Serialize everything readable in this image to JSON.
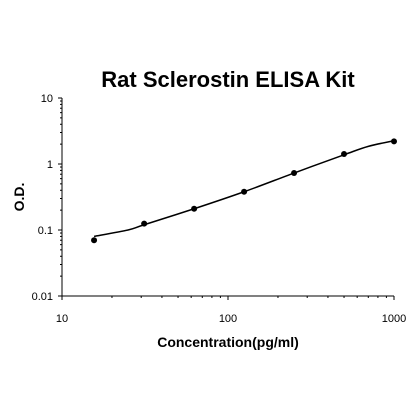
{
  "chart_data": {
    "type": "scatter",
    "title": "Rat Sclerostin ELISA Kit",
    "xlabel": "Concentration(pg/ml)",
    "ylabel": "O.D.",
    "x_scale": "log",
    "y_scale": "log",
    "xlim": [
      10,
      1000
    ],
    "ylim": [
      0.01,
      10
    ],
    "x_ticks": [
      10,
      100,
      1000
    ],
    "x_tick_labels": [
      "10",
      "100",
      "1000"
    ],
    "y_ticks": [
      0.01,
      0.1,
      1,
      10
    ],
    "y_tick_labels": [
      "0.01",
      "0.1",
      "1",
      "10"
    ],
    "grid": false,
    "series": [
      {
        "points": [
          {
            "x": 15.6,
            "y": 0.07
          },
          {
            "x": 31.25,
            "y": 0.125
          },
          {
            "x": 62.5,
            "y": 0.21
          },
          {
            "x": 125,
            "y": 0.38
          },
          {
            "x": 250,
            "y": 0.73
          },
          {
            "x": 500,
            "y": 1.42
          },
          {
            "x": 1000,
            "y": 2.2
          }
        ]
      }
    ],
    "fit_curve": [
      {
        "x": 15.6,
        "y": 0.08
      },
      {
        "x": 25,
        "y": 0.1
      },
      {
        "x": 31.25,
        "y": 0.12
      },
      {
        "x": 62.5,
        "y": 0.21
      },
      {
        "x": 125,
        "y": 0.38
      },
      {
        "x": 250,
        "y": 0.73
      },
      {
        "x": 500,
        "y": 1.38
      },
      {
        "x": 700,
        "y": 1.85
      },
      {
        "x": 1000,
        "y": 2.25
      }
    ]
  }
}
